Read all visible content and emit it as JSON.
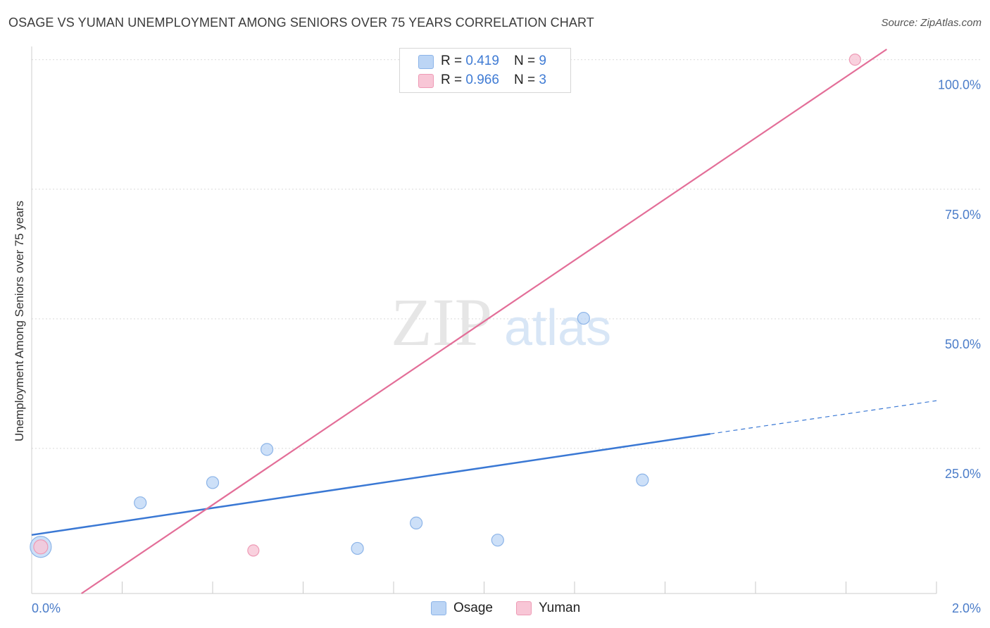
{
  "header": {
    "title": "OSAGE VS YUMAN UNEMPLOYMENT AMONG SENIORS OVER 75 YEARS CORRELATION CHART",
    "source": "Source: ZipAtlas.com"
  },
  "watermark": "ZIPatlas",
  "legend": {
    "osage": {
      "r_label": "R = ",
      "r_value": "0.419",
      "n_label": "N = ",
      "n_value": "9"
    },
    "yuman": {
      "r_label": "R = ",
      "r_value": "0.966",
      "n_label": "N = ",
      "n_value": "3"
    }
  },
  "colors": {
    "osage_fill": "#bcd5f5",
    "osage_stroke": "#8cb4e8",
    "osage_line": "#3a78d4",
    "yuman_fill": "#f8c6d6",
    "yuman_stroke": "#ee9ab5",
    "yuman_line": "#e36e98",
    "grid": "#d9d9d9",
    "tick_text": "#4a7cc9"
  },
  "chart_data": {
    "type": "scatter",
    "title": "OSAGE VS YUMAN UNEMPLOYMENT AMONG SENIORS OVER 75 YEARS CORRELATION CHART",
    "xlabel": "",
    "ylabel": "Unemployment Among Seniors over 75 years",
    "xlim": [
      0,
      2.0
    ],
    "ylim": [
      -3,
      102
    ],
    "x_tick_labels": [
      "0.0%",
      "2.0%"
    ],
    "y_ticks": [
      25,
      50,
      75,
      100
    ],
    "y_tick_labels": [
      "25.0%",
      "50.0%",
      "75.0%",
      "100.0%"
    ],
    "legend_position": "bottom-center",
    "series": [
      {
        "name": "Osage",
        "points": [
          {
            "x": 0.02,
            "y": 6.0,
            "size": "large"
          },
          {
            "x": 0.24,
            "y": 14.5
          },
          {
            "x": 0.4,
            "y": 18.4
          },
          {
            "x": 0.52,
            "y": 24.8
          },
          {
            "x": 0.72,
            "y": 5.7
          },
          {
            "x": 0.85,
            "y": 10.6
          },
          {
            "x": 1.03,
            "y": 7.3
          },
          {
            "x": 1.22,
            "y": 50.1
          },
          {
            "x": 1.35,
            "y": 18.9
          }
        ],
        "trend": {
          "x0": 0.0,
          "y0": 8.3,
          "x1": 1.5,
          "y1": 27.8,
          "dash_to_x": 2.0,
          "dash_to_y": 34.2
        }
      },
      {
        "name": "Yuman",
        "points": [
          {
            "x": 0.02,
            "y": 6.0
          },
          {
            "x": 0.49,
            "y": 5.3
          },
          {
            "x": 1.82,
            "y": 100.0
          }
        ],
        "trend": {
          "x0": 0.11,
          "y0": -3.0,
          "x1": 1.89,
          "y1": 102.0
        }
      }
    ],
    "legend_entries": [
      "Osage",
      "Yuman"
    ]
  }
}
